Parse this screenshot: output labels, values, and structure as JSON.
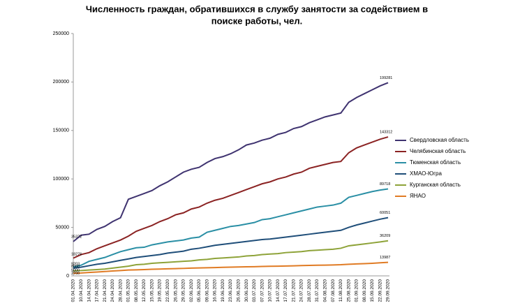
{
  "chart_data": {
    "type": "line",
    "title_lines": [
      "Численность граждан, обратившихся в службу занятости за содействием в",
      "поиске работы, чел."
    ],
    "categories": [
      "01.04.2020",
      "10.04.2020",
      "14.04.2020",
      "17.04.2020",
      "21.04.2020",
      "24.04.2020",
      "28.04.2020",
      "01.05.2020",
      "08.05.2020",
      "12.05.2020",
      "15.05.2020",
      "19.05.2020",
      "22.05.2020",
      "26.05.2020",
      "29.05.2020",
      "02.06.2020",
      "05.06.2020",
      "09.06.2020",
      "16.06.2020",
      "19.06.2020",
      "23.06.2020",
      "26.06.2020",
      "30.06.2020",
      "03.07.2020",
      "07.07.2020",
      "10.07.2020",
      "14.07.2020",
      "17.07.2020",
      "21.07.2020",
      "24.07.2020",
      "28.07.2020",
      "31.07.2020",
      "04.08.2020",
      "07.08.2020",
      "11.08.2020",
      "25.08.2020",
      "01.09.2020",
      "08.09.2020",
      "15.09.2020",
      "22.09.2020",
      "29.09.2020"
    ],
    "series": [
      {
        "name": "Свердловская область",
        "color": "#3f3370",
        "values": [
          35372,
          42000,
          43000,
          48000,
          51000,
          56000,
          60000,
          79000,
          82000,
          85000,
          88000,
          93000,
          97000,
          102000,
          107000,
          110000,
          112000,
          117000,
          121000,
          123000,
          126000,
          130000,
          135000,
          137000,
          140000,
          142000,
          146000,
          148000,
          152000,
          154000,
          158000,
          161000,
          164000,
          166000,
          168000,
          179000,
          184000,
          188000,
          192000,
          196000,
          199281
        ]
      },
      {
        "name": "Челябинская область",
        "color": "#8b2323",
        "values": [
          18276,
          22000,
          24000,
          28000,
          31000,
          34000,
          37000,
          41000,
          46000,
          49000,
          52000,
          56000,
          59000,
          63000,
          65000,
          69000,
          71000,
          75000,
          78000,
          80000,
          83000,
          86000,
          89000,
          92000,
          95000,
          97000,
          100000,
          102000,
          105000,
          107000,
          111000,
          113000,
          115000,
          117000,
          118000,
          127000,
          132000,
          135000,
          138000,
          141000,
          143312
        ]
      },
      {
        "name": "Тюменская область",
        "color": "#2a8fa5",
        "values": [
          9203,
          11000,
          15000,
          17000,
          19000,
          22000,
          25000,
          27000,
          29000,
          29500,
          32000,
          33500,
          35000,
          36000,
          37000,
          39000,
          40000,
          45000,
          47000,
          49000,
          51000,
          52000,
          53500,
          55000,
          58000,
          59000,
          61000,
          63000,
          65000,
          67000,
          69000,
          71000,
          72000,
          73000,
          75000,
          81000,
          83000,
          85000,
          87000,
          88500,
          89718
        ]
      },
      {
        "name": "ХМАО-Югра",
        "color": "#1f4e79",
        "values": [
          8000,
          9000,
          10500,
          12000,
          13000,
          14500,
          16000,
          17500,
          19000,
          20000,
          21000,
          22000,
          23500,
          24500,
          25500,
          27500,
          28500,
          30000,
          31500,
          32500,
          33500,
          34500,
          35500,
          36500,
          37500,
          38000,
          39000,
          40000,
          41000,
          42000,
          43000,
          44000,
          45000,
          46000,
          47000,
          50000,
          52500,
          54500,
          56500,
          58500,
          60051
        ]
      },
      {
        "name": "Курганская область",
        "color": "#8ea339",
        "values": [
          5000,
          5500,
          6000,
          6500,
          7000,
          8000,
          9000,
          10000,
          11500,
          12000,
          13000,
          13500,
          14000,
          14500,
          15000,
          15500,
          16500,
          17000,
          18000,
          18500,
          19000,
          19500,
          20500,
          21000,
          22000,
          22500,
          23000,
          24000,
          24500,
          25000,
          26000,
          26500,
          27000,
          27500,
          28500,
          31000,
          32000,
          33000,
          34000,
          35000,
          36209
        ]
      },
      {
        "name": "ЯНАО",
        "color": "#e07b24",
        "values": [
          2700,
          3000,
          3500,
          4000,
          4500,
          5000,
          5500,
          6000,
          6200,
          6500,
          6800,
          7000,
          7300,
          7500,
          7700,
          8000,
          8200,
          8400,
          8600,
          8800,
          9000,
          9200,
          9400,
          9500,
          9700,
          9900,
          10000,
          10200,
          10400,
          10600,
          10800,
          11000,
          11100,
          11300,
          11500,
          12000,
          12300,
          12600,
          13000,
          13500,
          13987
        ]
      }
    ],
    "ylim": [
      0,
      250000
    ],
    "yticks": [
      0,
      50000,
      100000,
      150000,
      200000,
      250000
    ],
    "grid": false,
    "legend": "right"
  }
}
